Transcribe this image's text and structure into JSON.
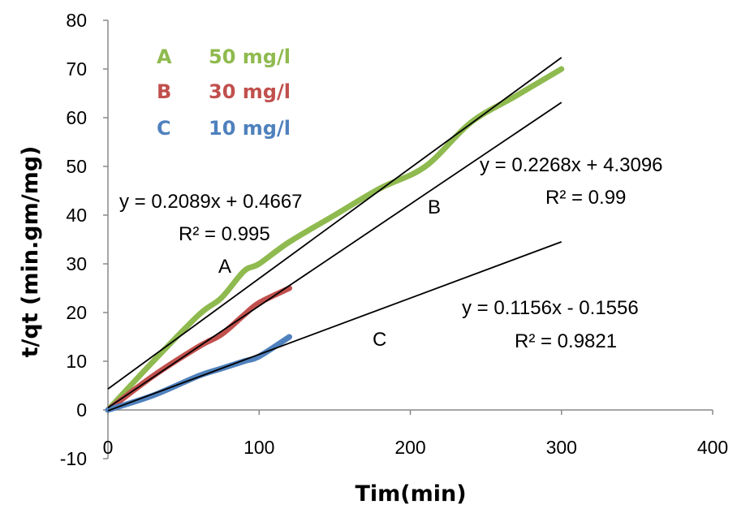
{
  "chart_data": {
    "type": "line",
    "xlabel": "Tim(min)",
    "ylabel": "t/qt (min.gm/mg)",
    "xlim": [
      0,
      400
    ],
    "ylim": [
      -10,
      80
    ],
    "xticks": [
      "0",
      "100",
      "200",
      "300",
      "400"
    ],
    "yticks": [
      "-10",
      "0",
      "10",
      "20",
      "30",
      "40",
      "50",
      "60",
      "70",
      "80"
    ],
    "grid": false,
    "legend_position": "top-left",
    "legend": [
      {
        "letter": "A",
        "label": "50 mg/l",
        "color": "#8fba4f"
      },
      {
        "letter": "B",
        "label": "30 mg/l",
        "color": "#c0504d"
      },
      {
        "letter": "C",
        "label": "10 mg/l",
        "color": "#4f81bd"
      }
    ],
    "series": [
      {
        "name": "A",
        "color": "#8fba4f",
        "x": [
          0,
          30,
          60,
          75,
          90,
          100,
          120,
          150,
          180,
          210,
          240,
          270,
          300
        ],
        "y": [
          0,
          10,
          19.5,
          23,
          28.5,
          30,
          34.5,
          40,
          45.5,
          50,
          59,
          64.5,
          70
        ]
      },
      {
        "name": "B",
        "color": "#c0504d",
        "x": [
          0,
          30,
          60,
          75,
          90,
          100,
          120
        ],
        "y": [
          0,
          7,
          13,
          15.5,
          19.5,
          22,
          25
        ]
      },
      {
        "name": "C",
        "color": "#4f81bd",
        "x": [
          0,
          30,
          60,
          75,
          90,
          100,
          120
        ],
        "y": [
          0,
          3,
          7,
          8.5,
          10,
          11,
          15
        ]
      }
    ],
    "trendlines": [
      {
        "slope": 0.2089,
        "intercept": 0.4667,
        "x_range": [
          0,
          300
        ],
        "color": "#000000"
      },
      {
        "slope": 0.2268,
        "intercept": 4.3096,
        "x_range": [
          0,
          300
        ],
        "color": "#000000"
      },
      {
        "slope": 0.1156,
        "intercept": -0.1556,
        "x_range": [
          0,
          300
        ],
        "color": "#000000"
      }
    ],
    "annotations": {
      "eq_a": "y = 0.2089x + 0.4667",
      "r2_a": "R² = 0.995",
      "label_a": "A",
      "eq_b": "y = 0.2268x + 4.3096",
      "r2_b": "R² = 0.99",
      "label_b": "B",
      "eq_c": "y = 0.1156x - 0.1556",
      "r2_c": "R² = 0.9821",
      "label_c": "C"
    }
  }
}
